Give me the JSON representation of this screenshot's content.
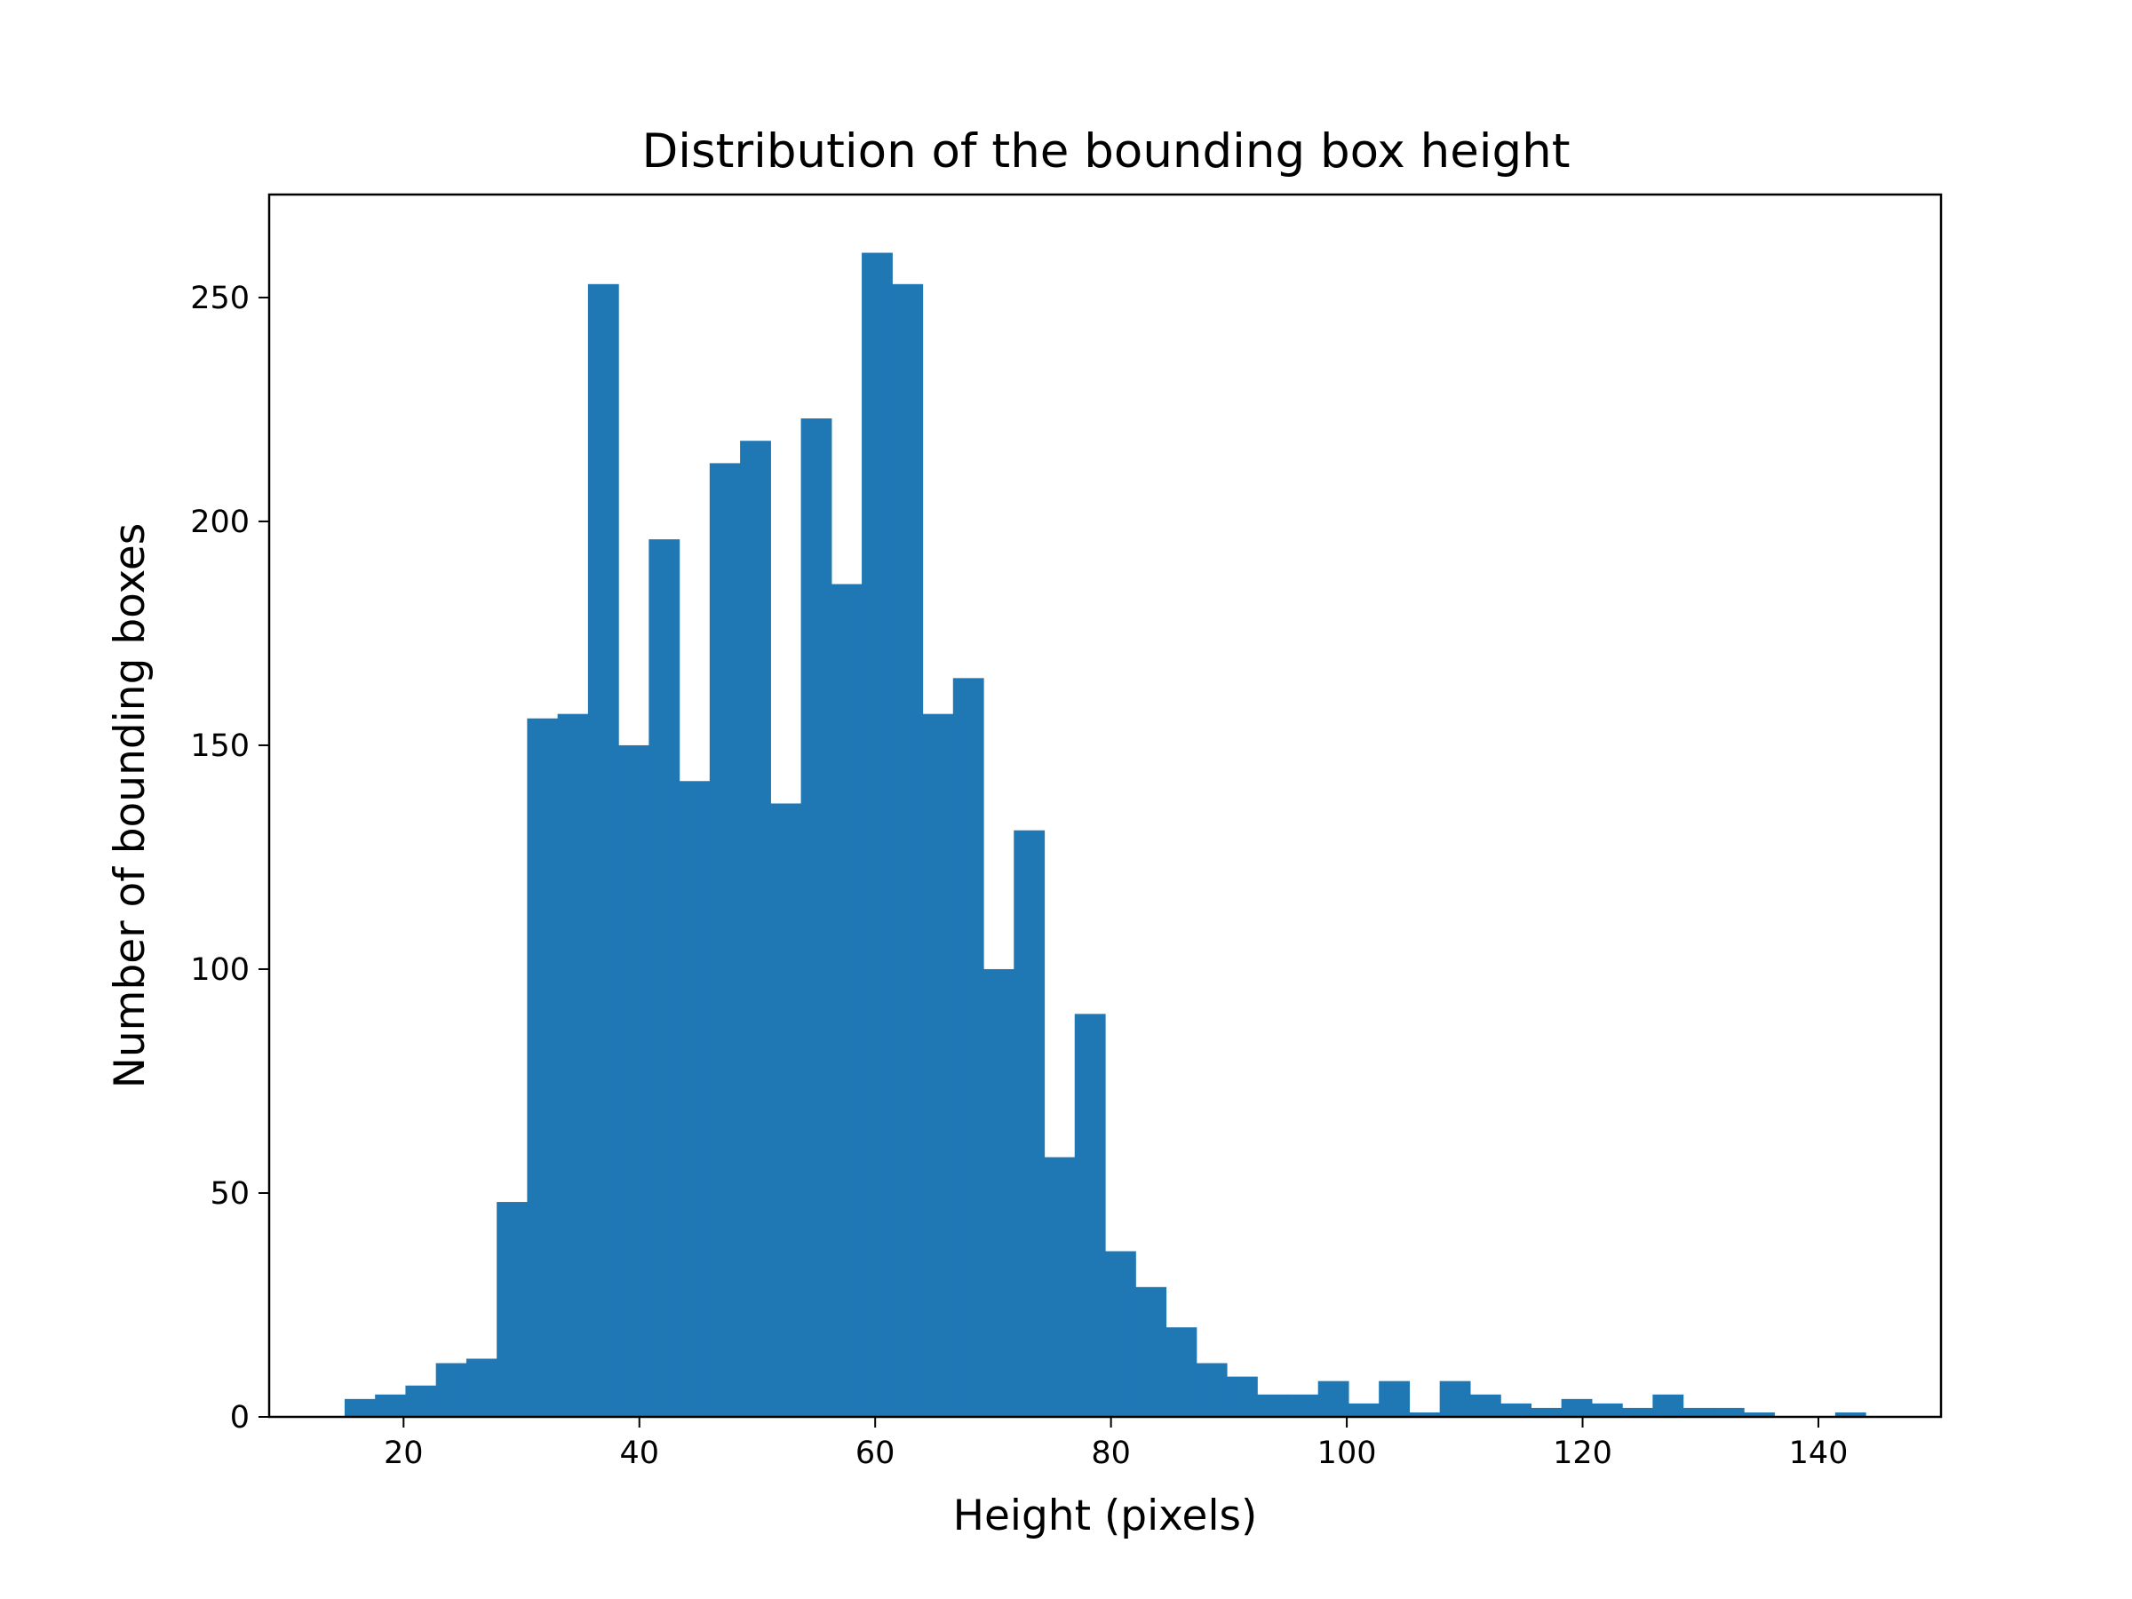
{
  "chart_data": {
    "type": "bar",
    "title": "Distribution of the bounding box height",
    "xlabel": "Height (pixels)",
    "ylabel": "Number of bounding boxes",
    "xlim": [
      8.6,
      150.4
    ],
    "ylim": [
      0,
      273
    ],
    "x_ticks": [
      20,
      40,
      60,
      80,
      100,
      120,
      140
    ],
    "y_ticks": [
      0,
      50,
      100,
      150,
      200,
      250
    ],
    "grid": false,
    "legend": "none",
    "bar_color": "#1f77b4",
    "bin_edges": [
      15.0,
      17.58,
      20.16,
      22.74,
      25.32,
      27.9,
      30.48,
      33.06,
      35.64,
      38.22,
      40.8,
      43.38,
      45.96,
      48.54,
      51.12,
      53.7,
      56.28,
      58.86,
      61.44,
      64.02,
      66.6,
      69.18,
      71.76,
      74.34,
      76.92,
      79.5,
      82.08,
      84.66,
      87.24,
      89.82,
      92.4,
      94.98,
      97.56,
      100.14,
      102.72,
      105.3,
      107.88,
      110.46,
      113.04,
      115.62,
      118.2,
      120.78,
      123.36,
      125.94,
      128.52,
      131.1,
      133.68,
      136.26,
      138.84,
      141.42,
      144.0
    ],
    "values": [
      4,
      5,
      7,
      12,
      13,
      48,
      156,
      157,
      253,
      150,
      196,
      142,
      213,
      218,
      137,
      223,
      186,
      260,
      253,
      157,
      165,
      100,
      131,
      58,
      90,
      37,
      29,
      20,
      12,
      9,
      5,
      5,
      8,
      3,
      8,
      1,
      8,
      5,
      3,
      2,
      4,
      3,
      2,
      5,
      2,
      2,
      1,
      0,
      0,
      1
    ]
  }
}
